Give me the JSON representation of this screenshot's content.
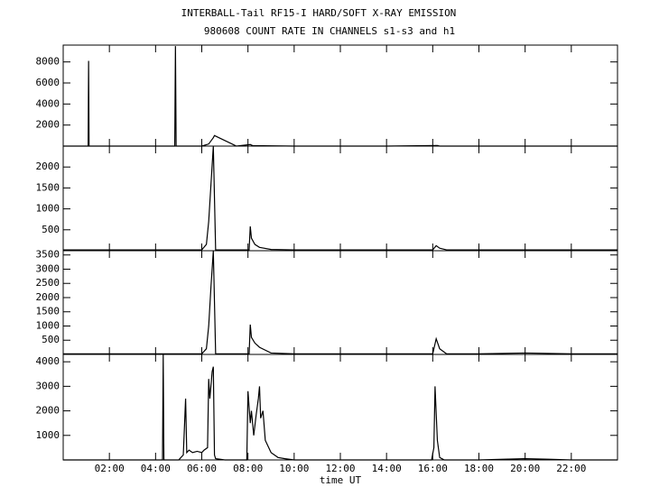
{
  "chart_data": [
    {
      "type": "line",
      "title": "INTERBALL-Tail RF15-I HARD/SOFT X-RAY EMISSION",
      "subtitle": "980608  COUNT RATE IN CHANNELS s1-s3 and h1",
      "color": "#000000",
      "xlim": [
        0,
        24
      ],
      "ylim": [
        0,
        9600
      ],
      "yticks": [
        2000,
        4000,
        6000,
        8000
      ],
      "x": [
        0,
        1.08,
        1.1,
        1.12,
        3,
        4.83,
        4.86,
        4.89,
        6,
        6.3,
        6.5,
        6.55,
        7.5,
        8.1,
        8.2,
        10,
        14,
        16.2,
        16.3,
        20,
        24
      ],
      "values": [
        0,
        0,
        8100,
        0,
        0,
        0,
        9500,
        0,
        0,
        200,
        800,
        1000,
        0,
        150,
        50,
        0,
        0,
        60,
        0,
        0,
        0
      ]
    },
    {
      "type": "line",
      "color": "#000000",
      "xlim": [
        0,
        24
      ],
      "ylim": [
        0,
        2500
      ],
      "yticks": [
        500,
        1000,
        1500,
        2000
      ],
      "x": [
        0,
        2,
        5,
        6,
        6.2,
        6.3,
        6.4,
        6.5,
        6.6,
        7,
        8.05,
        8.1,
        8.15,
        8.3,
        8.5,
        9,
        10,
        12,
        14,
        16,
        16.15,
        16.3,
        16.6,
        18,
        20,
        22,
        24
      ],
      "values": [
        20,
        20,
        20,
        20,
        150,
        700,
        1600,
        2500,
        20,
        20,
        20,
        580,
        300,
        150,
        80,
        30,
        20,
        20,
        20,
        20,
        120,
        60,
        20,
        20,
        20,
        20,
        20
      ]
    },
    {
      "type": "line",
      "color": "#000000",
      "xlim": [
        0,
        24
      ],
      "ylim": [
        0,
        3650
      ],
      "yticks": [
        500,
        1000,
        1500,
        2000,
        2500,
        3000,
        3500
      ],
      "x": [
        0,
        2,
        5,
        6,
        6.2,
        6.3,
        6.4,
        6.5,
        6.6,
        7,
        8.05,
        8.1,
        8.15,
        8.3,
        8.5,
        9,
        10,
        12,
        14,
        16,
        16.15,
        16.3,
        16.6,
        18,
        20,
        22,
        24
      ],
      "values": [
        20,
        20,
        20,
        20,
        200,
        1000,
        2400,
        3650,
        20,
        20,
        20,
        1050,
        600,
        400,
        250,
        50,
        20,
        20,
        20,
        20,
        550,
        200,
        20,
        20,
        50,
        20,
        20
      ]
    },
    {
      "type": "line",
      "color": "#000000",
      "xlabel": "time UT",
      "xlim": [
        0,
        24
      ],
      "ylim": [
        0,
        4300
      ],
      "yticks": [
        1000,
        2000,
        3000,
        4000
      ],
      "xticks": [
        {
          "value": 2,
          "label": "02:00"
        },
        {
          "value": 4,
          "label": "04:00"
        },
        {
          "value": 6,
          "label": "06:00"
        },
        {
          "value": 8,
          "label": "08:00"
        },
        {
          "value": 10,
          "label": "10:00"
        },
        {
          "value": 12,
          "label": "12:00"
        },
        {
          "value": 14,
          "label": "14:00"
        },
        {
          "value": 16,
          "label": "16:00"
        },
        {
          "value": 18,
          "label": "18:00"
        },
        {
          "value": 20,
          "label": "20:00"
        },
        {
          "value": 22,
          "label": "22:00"
        }
      ],
      "x": [
        0,
        4.3,
        4.33,
        4.36,
        5.0,
        5.2,
        5.3,
        5.35,
        5.45,
        5.6,
        5.8,
        6.0,
        6.1,
        6.25,
        6.3,
        6.35,
        6.45,
        6.5,
        6.55,
        6.6,
        7,
        7.95,
        8.0,
        8.1,
        8.15,
        8.25,
        8.35,
        8.45,
        8.5,
        8.55,
        8.65,
        8.75,
        9,
        9.3,
        9.6,
        10,
        12,
        15.95,
        16.05,
        16.1,
        16.2,
        16.3,
        16.5,
        18,
        20,
        21,
        22,
        24
      ],
      "values": [
        0,
        0,
        4300,
        0,
        0,
        200,
        2500,
        300,
        400,
        300,
        350,
        300,
        400,
        500,
        3300,
        2500,
        3600,
        3800,
        200,
        50,
        0,
        0,
        2800,
        1500,
        2000,
        1000,
        1800,
        2500,
        3000,
        1700,
        2000,
        800,
        300,
        100,
        50,
        0,
        0,
        0,
        500,
        3000,
        800,
        100,
        0,
        0,
        50,
        30,
        0,
        0
      ]
    }
  ]
}
